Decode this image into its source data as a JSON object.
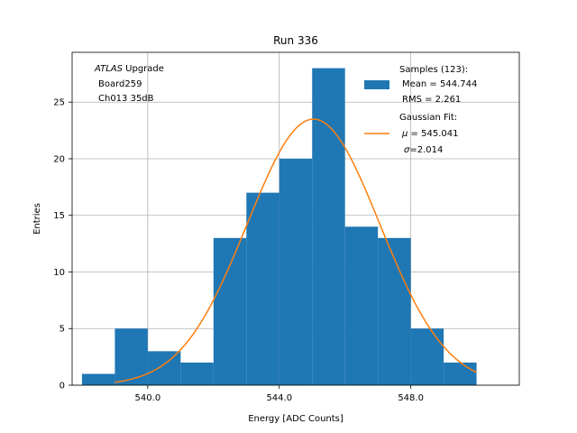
{
  "chart_data": {
    "type": "bar",
    "title": "Run 336",
    "xlabel": "Energy [ADC Counts]",
    "ylabel": "Entries",
    "xlim": [
      537.7,
      551.3
    ],
    "ylim": [
      0,
      29.4
    ],
    "grid": true,
    "x_ticks": [
      540,
      544,
      548
    ],
    "x_tick_labels": [
      "540.0",
      "544.0",
      "548.0"
    ],
    "y_ticks": [
      0,
      5,
      10,
      15,
      20,
      25
    ],
    "y_tick_labels": [
      "0",
      "5",
      "10",
      "15",
      "20",
      "25"
    ],
    "bin_edges": [
      538,
      539,
      540,
      541,
      542,
      543,
      544,
      545,
      546,
      547,
      548,
      549,
      550
    ],
    "counts": [
      1,
      5,
      3,
      2,
      13,
      17,
      20,
      28,
      14,
      13,
      5,
      2
    ],
    "hist_color": "#1f77b4",
    "fit": {
      "name": "Gaussian Fit:",
      "mu": 545.041,
      "sigma": 2.014,
      "amplitude": 23.5,
      "x_range": [
        539,
        550
      ],
      "color": "#ff7f0e"
    },
    "annotation": {
      "line1_italic": "ATLAS",
      "line1_rest": " Upgrade",
      "line2": "Board259",
      "line3": "Ch013 35dB"
    },
    "legend": {
      "placement": "top-right",
      "samples_title": "Samples (123):",
      "samples_mean": "Mean = 544.744",
      "samples_rms": "RMS = 2.261",
      "fit_title": "Gaussian Fit:",
      "fit_mu_sym": "μ",
      "fit_mu_val": " = 545.041",
      "fit_sigma_sym": "σ",
      "fit_sigma_val": "=2.014"
    }
  }
}
